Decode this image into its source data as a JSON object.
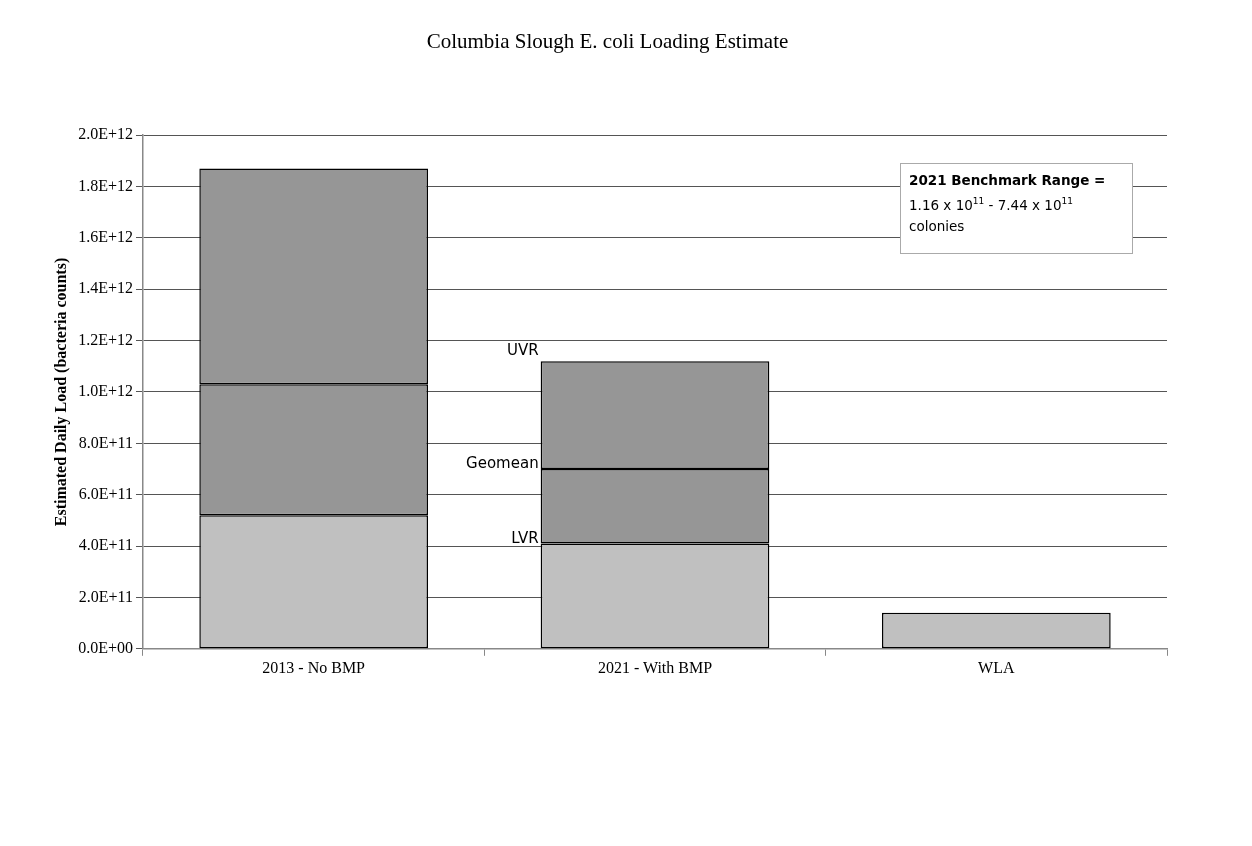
{
  "chart_data": {
    "type": "bar",
    "title": "Columbia Slough E. coli Loading Estimate",
    "ylabel": "Estimated Daily Load (bacteria counts)",
    "categories": [
      "2013 - No BMP",
      "2021 - With BMP",
      "WLA"
    ],
    "stacked": true,
    "series": [
      {
        "color": "#c0c0c0",
        "values": [
          520000000000.0,
          410000000000.0,
          140000000000.0
        ]
      },
      {
        "color": "#969696",
        "values": [
          510000000000.0,
          290000000000.0,
          null
        ]
      },
      {
        "color": "#969696",
        "values": [
          840000000000.0,
          420000000000.0,
          null
        ]
      }
    ],
    "ylim": [
      0,
      2000000000000.0
    ],
    "yticks": [
      {
        "value": 0,
        "label": "0.0E+00"
      },
      {
        "value": 200000000000.0,
        "label": "2.0E+11"
      },
      {
        "value": 400000000000.0,
        "label": "4.0E+11"
      },
      {
        "value": 600000000000.0,
        "label": "6.0E+11"
      },
      {
        "value": 800000000000.0,
        "label": "8.0E+11"
      },
      {
        "value": 1000000000000.0,
        "label": "1.0E+12"
      },
      {
        "value": 1200000000000.0,
        "label": "1.2E+12"
      },
      {
        "value": 1400000000000.0,
        "label": "1.4E+12"
      },
      {
        "value": 1600000000000.0,
        "label": "1.6E+12"
      },
      {
        "value": 1800000000000.0,
        "label": "1.8E+12"
      },
      {
        "value": 2000000000000.0,
        "label": "2.0E+12"
      }
    ],
    "grid": "y",
    "annotations": [
      "UVR",
      "Geomean",
      "LVR",
      "2021 Benchmark Range = 1.16 x 10$^{11}$ - 7.44 x 10$^{11}$ colonies"
    ]
  }
}
